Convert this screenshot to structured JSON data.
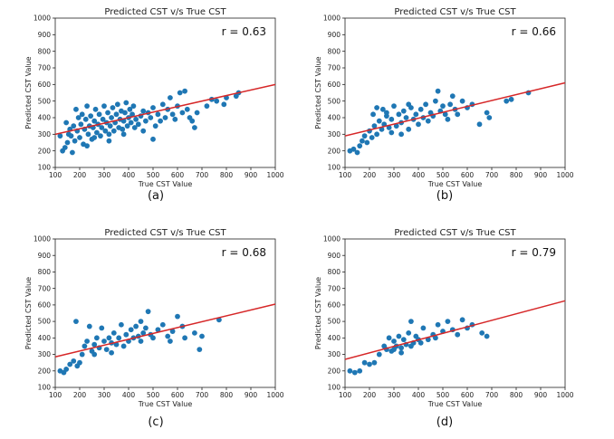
{
  "chart_data": [
    {
      "type": "scatter",
      "panel": "(a)",
      "title": "Predicted CST v/s True CST",
      "xlabel": "True CST Value",
      "ylabel": "Predicted CST Value",
      "xlim": [
        100,
        1000
      ],
      "ylim": [
        100,
        1000
      ],
      "xticks": [
        "100",
        "200",
        "300",
        "400",
        "500",
        "600",
        "700",
        "800",
        "900",
        "1000"
      ],
      "yticks": [
        "100",
        "200",
        "300",
        "400",
        "500",
        "600",
        "700",
        "800",
        "900",
        "1000"
      ],
      "r_label": "r = 0.63",
      "fit_line": {
        "x": [
          100,
          1000
        ],
        "y": [
          300,
          600
        ]
      },
      "grid": false,
      "points": [
        [
          120,
          290
        ],
        [
          130,
          200
        ],
        [
          140,
          220
        ],
        [
          145,
          370
        ],
        [
          150,
          250
        ],
        [
          155,
          300
        ],
        [
          160,
          330
        ],
        [
          165,
          290
        ],
        [
          170,
          190
        ],
        [
          175,
          350
        ],
        [
          180,
          260
        ],
        [
          185,
          450
        ],
        [
          190,
          320
        ],
        [
          195,
          400
        ],
        [
          200,
          280
        ],
        [
          205,
          360
        ],
        [
          210,
          420
        ],
        [
          215,
          240
        ],
        [
          220,
          330
        ],
        [
          225,
          390
        ],
        [
          230,
          470
        ],
        [
          235,
          300
        ],
        [
          240,
          350
        ],
        [
          245,
          410
        ],
        [
          250,
          270
        ],
        [
          255,
          340
        ],
        [
          260,
          380
        ],
        [
          265,
          450
        ],
        [
          270,
          310
        ],
        [
          275,
          360
        ],
        [
          280,
          420
        ],
        [
          285,
          290
        ],
        [
          290,
          340
        ],
        [
          295,
          390
        ],
        [
          300,
          470
        ],
        [
          305,
          320
        ],
        [
          310,
          370
        ],
        [
          315,
          430
        ],
        [
          320,
          300
        ],
        [
          325,
          350
        ],
        [
          330,
          400
        ],
        [
          335,
          460
        ],
        [
          340,
          320
        ],
        [
          345,
          370
        ],
        [
          350,
          420
        ],
        [
          355,
          480
        ],
        [
          360,
          340
        ],
        [
          365,
          390
        ],
        [
          370,
          440
        ],
        [
          375,
          330
        ],
        [
          380,
          380
        ],
        [
          385,
          430
        ],
        [
          390,
          490
        ],
        [
          395,
          350
        ],
        [
          400,
          400
        ],
        [
          405,
          450
        ],
        [
          410,
          370
        ],
        [
          415,
          420
        ],
        [
          420,
          470
        ],
        [
          425,
          340
        ],
        [
          430,
          390
        ],
        [
          440,
          360
        ],
        [
          450,
          410
        ],
        [
          460,
          440
        ],
        [
          470,
          380
        ],
        [
          480,
          430
        ],
        [
          490,
          400
        ],
        [
          500,
          460
        ],
        [
          510,
          350
        ],
        [
          520,
          420
        ],
        [
          530,
          380
        ],
        [
          540,
          480
        ],
        [
          550,
          400
        ],
        [
          560,
          450
        ],
        [
          570,
          520
        ],
        [
          580,
          420
        ],
        [
          590,
          390
        ],
        [
          600,
          470
        ],
        [
          610,
          550
        ],
        [
          620,
          430
        ],
        [
          630,
          560
        ],
        [
          640,
          450
        ],
        [
          650,
          400
        ],
        [
          660,
          380
        ],
        [
          670,
          340
        ],
        [
          680,
          430
        ],
        [
          720,
          470
        ],
        [
          740,
          510
        ],
        [
          760,
          500
        ],
        [
          790,
          480
        ],
        [
          800,
          520
        ],
        [
          840,
          530
        ],
        [
          850,
          550
        ],
        [
          500,
          270
        ],
        [
          460,
          320
        ],
        [
          380,
          300
        ],
        [
          320,
          260
        ],
        [
          260,
          280
        ],
        [
          230,
          230
        ]
      ]
    },
    {
      "type": "scatter",
      "panel": "(b)",
      "title": "Predicted CST v/s True CST",
      "xlabel": "True CST Value",
      "ylabel": "Predicted CST Value",
      "xlim": [
        100,
        1000
      ],
      "ylim": [
        100,
        1000
      ],
      "xticks": [
        "100",
        "200",
        "300",
        "400",
        "500",
        "600",
        "700",
        "800",
        "900",
        "1000"
      ],
      "yticks": [
        "100",
        "200",
        "300",
        "400",
        "500",
        "600",
        "700",
        "800",
        "900",
        "1000"
      ],
      "r_label": "r = 0.66",
      "fit_line": {
        "x": [
          100,
          1000
        ],
        "y": [
          290,
          610
        ]
      },
      "grid": false,
      "points": [
        [
          120,
          200
        ],
        [
          135,
          210
        ],
        [
          150,
          190
        ],
        [
          160,
          230
        ],
        [
          170,
          260
        ],
        [
          180,
          290
        ],
        [
          190,
          250
        ],
        [
          200,
          320
        ],
        [
          210,
          280
        ],
        [
          215,
          420
        ],
        [
          220,
          350
        ],
        [
          230,
          300
        ],
        [
          240,
          380
        ],
        [
          250,
          330
        ],
        [
          255,
          450
        ],
        [
          260,
          360
        ],
        [
          270,
          410
        ],
        [
          280,
          340
        ],
        [
          290,
          390
        ],
        [
          300,
          470
        ],
        [
          310,
          350
        ],
        [
          320,
          420
        ],
        [
          330,
          370
        ],
        [
          340,
          440
        ],
        [
          350,
          400
        ],
        [
          360,
          330
        ],
        [
          370,
          460
        ],
        [
          380,
          390
        ],
        [
          390,
          420
        ],
        [
          400,
          360
        ],
        [
          410,
          450
        ],
        [
          420,
          400
        ],
        [
          430,
          480
        ],
        [
          440,
          380
        ],
        [
          450,
          430
        ],
        [
          460,
          410
        ],
        [
          470,
          500
        ],
        [
          480,
          560
        ],
        [
          490,
          440
        ],
        [
          500,
          470
        ],
        [
          510,
          420
        ],
        [
          520,
          390
        ],
        [
          530,
          480
        ],
        [
          540,
          530
        ],
        [
          550,
          450
        ],
        [
          560,
          420
        ],
        [
          580,
          500
        ],
        [
          600,
          460
        ],
        [
          620,
          480
        ],
        [
          650,
          360
        ],
        [
          680,
          430
        ],
        [
          690,
          400
        ],
        [
          760,
          500
        ],
        [
          780,
          510
        ],
        [
          850,
          550
        ],
        [
          230,
          460
        ],
        [
          270,
          430
        ],
        [
          290,
          310
        ],
        [
          330,
          300
        ],
        [
          360,
          480
        ]
      ]
    },
    {
      "type": "scatter",
      "panel": "(c)",
      "title": "Predicted CST v/s True CST",
      "xlabel": "True CST Value",
      "ylabel": "Predicted CST Value",
      "xlim": [
        100,
        1000
      ],
      "ylim": [
        100,
        1000
      ],
      "xticks": [
        "100",
        "200",
        "300",
        "400",
        "500",
        "600",
        "700",
        "800",
        "900",
        "1000"
      ],
      "yticks": [
        "100",
        "200",
        "300",
        "400",
        "500",
        "600",
        "700",
        "800",
        "900",
        "1000"
      ],
      "r_label": "r = 0.68",
      "fit_line": {
        "x": [
          100,
          1000
        ],
        "y": [
          285,
          605
        ]
      },
      "grid": false,
      "points": [
        [
          120,
          200
        ],
        [
          135,
          190
        ],
        [
          145,
          210
        ],
        [
          160,
          240
        ],
        [
          175,
          260
        ],
        [
          185,
          500
        ],
        [
          190,
          230
        ],
        [
          200,
          250
        ],
        [
          210,
          300
        ],
        [
          220,
          350
        ],
        [
          230,
          380
        ],
        [
          240,
          470
        ],
        [
          250,
          320
        ],
        [
          260,
          360
        ],
        [
          270,
          400
        ],
        [
          280,
          340
        ],
        [
          290,
          460
        ],
        [
          300,
          380
        ],
        [
          310,
          330
        ],
        [
          320,
          400
        ],
        [
          330,
          370
        ],
        [
          340,
          430
        ],
        [
          350,
          360
        ],
        [
          360,
          400
        ],
        [
          370,
          480
        ],
        [
          380,
          350
        ],
        [
          390,
          420
        ],
        [
          400,
          380
        ],
        [
          410,
          450
        ],
        [
          420,
          400
        ],
        [
          430,
          470
        ],
        [
          440,
          410
        ],
        [
          450,
          380
        ],
        [
          460,
          430
        ],
        [
          470,
          460
        ],
        [
          480,
          560
        ],
        [
          490,
          420
        ],
        [
          500,
          400
        ],
        [
          520,
          450
        ],
        [
          540,
          480
        ],
        [
          560,
          410
        ],
        [
          570,
          380
        ],
        [
          580,
          440
        ],
        [
          600,
          530
        ],
        [
          620,
          470
        ],
        [
          630,
          400
        ],
        [
          670,
          430
        ],
        [
          690,
          330
        ],
        [
          700,
          410
        ],
        [
          770,
          510
        ],
        [
          260,
          300
        ],
        [
          330,
          310
        ],
        [
          450,
          500
        ]
      ]
    },
    {
      "type": "scatter",
      "panel": "(d)",
      "title": "Predicted CST v/s True CST",
      "xlabel": "True CST Value",
      "ylabel": "Predicted CST Value",
      "xlim": [
        100,
        1000
      ],
      "ylim": [
        100,
        1000
      ],
      "xticks": [
        "100",
        "200",
        "300",
        "400",
        "500",
        "600",
        "700",
        "800",
        "900",
        "1000"
      ],
      "yticks": [
        "100",
        "200",
        "300",
        "400",
        "500",
        "600",
        "700",
        "800",
        "900",
        "1000"
      ],
      "r_label": "r = 0.79",
      "fit_line": {
        "x": [
          100,
          1000
        ],
        "y": [
          270,
          625
        ]
      },
      "grid": false,
      "points": [
        [
          120,
          200
        ],
        [
          140,
          190
        ],
        [
          160,
          200
        ],
        [
          180,
          250
        ],
        [
          200,
          240
        ],
        [
          220,
          250
        ],
        [
          240,
          300
        ],
        [
          260,
          350
        ],
        [
          270,
          330
        ],
        [
          280,
          400
        ],
        [
          290,
          320
        ],
        [
          300,
          380
        ],
        [
          310,
          350
        ],
        [
          320,
          410
        ],
        [
          330,
          340
        ],
        [
          340,
          390
        ],
        [
          350,
          360
        ],
        [
          360,
          430
        ],
        [
          370,
          500
        ],
        [
          380,
          370
        ],
        [
          390,
          410
        ],
        [
          400,
          390
        ],
        [
          420,
          460
        ],
        [
          440,
          390
        ],
        [
          460,
          420
        ],
        [
          470,
          400
        ],
        [
          480,
          480
        ],
        [
          500,
          440
        ],
        [
          520,
          500
        ],
        [
          540,
          450
        ],
        [
          560,
          420
        ],
        [
          580,
          510
        ],
        [
          600,
          460
        ],
        [
          620,
          480
        ],
        [
          660,
          430
        ],
        [
          680,
          410
        ],
        [
          300,
          330
        ],
        [
          330,
          310
        ],
        [
          370,
          350
        ],
        [
          410,
          370
        ]
      ]
    }
  ],
  "captions": [
    "(a)",
    "(b)",
    "(c)",
    "(d)"
  ]
}
